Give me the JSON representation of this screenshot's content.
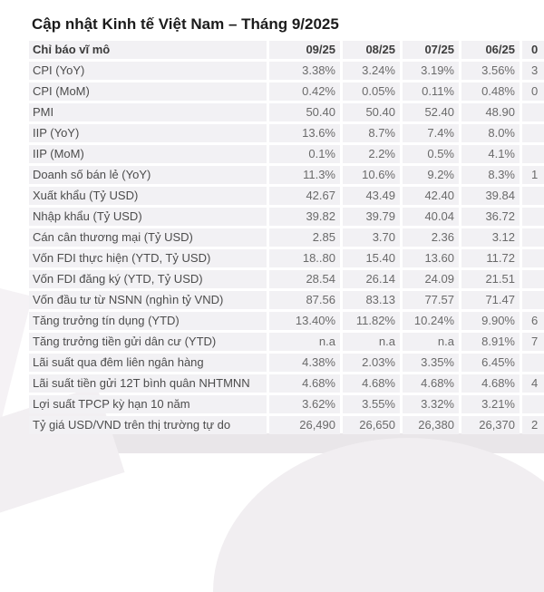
{
  "page": {
    "title": "Cập nhật Kinh tế Việt Nam – Tháng 9/2025"
  },
  "colors": {
    "page_background": "#ffffff",
    "row_background": "#f2f1f4",
    "title_text": "#1c1c1c",
    "header_text": "#3d3d3d",
    "label_text": "#4c4c4c",
    "value_text": "#6a6a6a",
    "footer_band": "#e9e6e9"
  },
  "chart_data": {
    "type": "table",
    "title": "Cập nhật Kinh tế Việt Nam – Tháng 9/2025",
    "header": {
      "label": "Chỉ báo vĩ mô",
      "columns": [
        "09/25",
        "08/25",
        "07/25",
        "06/25"
      ],
      "clipped_fragment": "0"
    },
    "rows": [
      {
        "label": "CPI (YoY)",
        "values": [
          "3.38%",
          "3.24%",
          "3.19%",
          "3.56%"
        ],
        "fragment": "3"
      },
      {
        "label": "CPI (MoM)",
        "values": [
          "0.42%",
          "0.05%",
          "0.11%",
          "0.48%"
        ],
        "fragment": "0"
      },
      {
        "label": "PMI",
        "values": [
          "50.40",
          "50.40",
          "52.40",
          "48.90"
        ],
        "fragment": ""
      },
      {
        "label": "IIP (YoY)",
        "values": [
          "13.6%",
          "8.7%",
          "7.4%",
          "8.0%"
        ],
        "fragment": ""
      },
      {
        "label": "IIP (MoM)",
        "values": [
          "0.1%",
          "2.2%",
          "0.5%",
          "4.1%"
        ],
        "fragment": ""
      },
      {
        "label": "Doanh số bán lẻ (YoY)",
        "values": [
          "11.3%",
          "10.6%",
          "9.2%",
          "8.3%"
        ],
        "fragment": "1"
      },
      {
        "label": "Xuất khẩu (Tỷ USD)",
        "values": [
          "42.67",
          "43.49",
          "42.40",
          "39.84"
        ],
        "fragment": ""
      },
      {
        "label": "Nhập khẩu (Tỷ USD)",
        "values": [
          "39.82",
          "39.79",
          "40.04",
          "36.72"
        ],
        "fragment": ""
      },
      {
        "label": "Cán cân thương mại (Tỷ USD)",
        "values": [
          "2.85",
          "3.70",
          "2.36",
          "3.12"
        ],
        "fragment": ""
      },
      {
        "label": "Vốn FDI thực hiện (YTD, Tỷ USD)",
        "values": [
          "18..80",
          "15.40",
          "13.60",
          "11.72"
        ],
        "fragment": ""
      },
      {
        "label": "Vốn FDI đăng ký (YTD, Tỷ USD)",
        "values": [
          "28.54",
          "26.14",
          "24.09",
          "21.51"
        ],
        "fragment": ""
      },
      {
        "label": "Vốn đầu tư từ NSNN (nghìn tỷ VND)",
        "values": [
          "87.56",
          "83.13",
          "77.57",
          "71.47"
        ],
        "fragment": ""
      },
      {
        "label": "Tăng trưởng tín dụng (YTD)",
        "values": [
          "13.40%",
          "11.82%",
          "10.24%",
          "9.90%"
        ],
        "fragment": "6"
      },
      {
        "label": "Tăng trưởng tiền gửi dân cư (YTD)",
        "values": [
          "n.a",
          "n.a",
          "n.a",
          "8.91%"
        ],
        "fragment": "7"
      },
      {
        "label": "Lãi suất qua đêm liên ngân hàng",
        "values": [
          "4.38%",
          "2.03%",
          "3.35%",
          "6.45%"
        ],
        "fragment": ""
      },
      {
        "label": "Lãi suất tiền gửi 12T bình quân NHTMNN",
        "values": [
          "4.68%",
          "4.68%",
          "4.68%",
          "4.68%"
        ],
        "fragment": "4"
      },
      {
        "label": "Lợi suất TPCP kỳ hạn 10 năm",
        "values": [
          "3.62%",
          "3.55%",
          "3.32%",
          "3.21%"
        ],
        "fragment": ""
      },
      {
        "label": "Tỷ giá USD/VND trên thị trường tự do",
        "values": [
          "26,490",
          "26,650",
          "26,380",
          "26,370"
        ],
        "fragment": "2"
      }
    ]
  }
}
